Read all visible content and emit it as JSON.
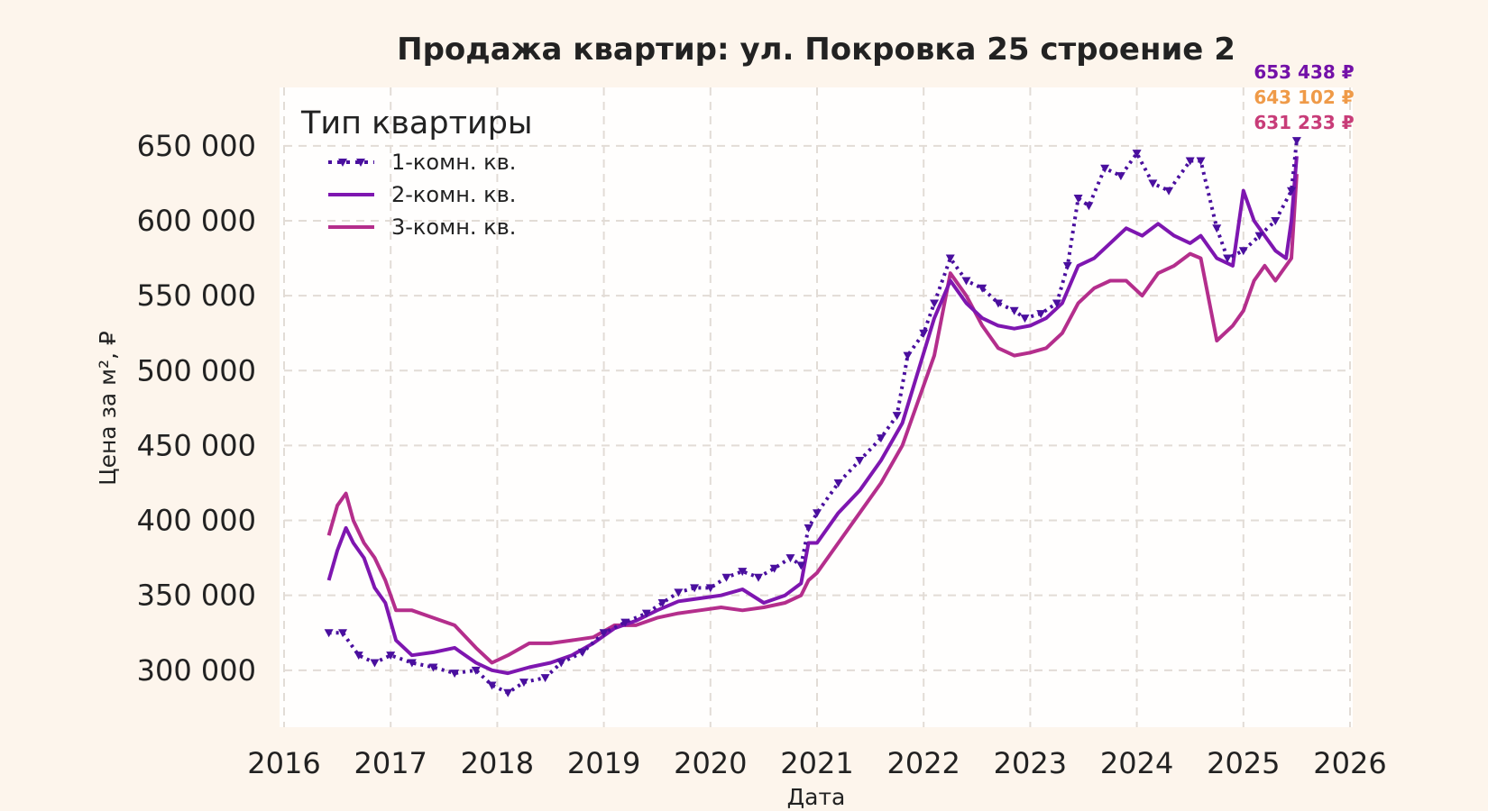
{
  "chart_data": {
    "type": "line",
    "title": "Продажа квартир: ул. Покровка 25 строение 2",
    "xlabel": "Дата",
    "ylabel": "Цена за м², ₽",
    "xlim": [
      2016.0,
      2026.0
    ],
    "ylim": [
      262000,
      689000
    ],
    "x_ticks": [
      "2016",
      "2017",
      "2018",
      "2019",
      "2020",
      "2021",
      "2022",
      "2023",
      "2024",
      "2025",
      "2026"
    ],
    "y_ticks": [
      "300 000",
      "350 000",
      "400 000",
      "450 000",
      "500 000",
      "550 000",
      "600 000",
      "650 000"
    ],
    "grid": true,
    "legend": {
      "title": "Тип квартиры",
      "placement": "top-left"
    },
    "series": [
      {
        "name": "1-комн. кв.",
        "color": "#4a0f9e",
        "style": "dotted-triangle",
        "end_label": "653 438 ₽",
        "x": [
          2016.42,
          2016.55,
          2016.7,
          2016.85,
          2017.0,
          2017.2,
          2017.4,
          2017.6,
          2017.8,
          2017.95,
          2018.1,
          2018.25,
          2018.45,
          2018.6,
          2018.8,
          2019.0,
          2019.2,
          2019.4,
          2019.55,
          2019.7,
          2019.85,
          2020.0,
          2020.15,
          2020.3,
          2020.45,
          2020.6,
          2020.75,
          2020.85,
          2020.92,
          2021.0,
          2021.2,
          2021.4,
          2021.6,
          2021.75,
          2021.85,
          2022.0,
          2022.1,
          2022.25,
          2022.4,
          2022.55,
          2022.7,
          2022.85,
          2022.95,
          2023.1,
          2023.25,
          2023.35,
          2023.45,
          2023.55,
          2023.7,
          2023.85,
          2024.0,
          2024.15,
          2024.3,
          2024.5,
          2024.6,
          2024.75,
          2024.85,
          2025.0,
          2025.15,
          2025.3,
          2025.45,
          2025.5
        ],
        "values": [
          325000,
          325000,
          310000,
          305000,
          310000,
          305000,
          302000,
          298000,
          300000,
          290000,
          285000,
          292000,
          295000,
          305000,
          312000,
          325000,
          332000,
          338000,
          345000,
          352000,
          355000,
          355000,
          362000,
          366000,
          362000,
          368000,
          375000,
          370000,
          395000,
          405000,
          425000,
          440000,
          455000,
          470000,
          510000,
          525000,
          545000,
          575000,
          560000,
          555000,
          545000,
          540000,
          535000,
          538000,
          545000,
          570000,
          615000,
          610000,
          635000,
          630000,
          645000,
          625000,
          620000,
          640000,
          640000,
          595000,
          575000,
          580000,
          590000,
          600000,
          620000,
          653438
        ]
      },
      {
        "name": "2-комн. кв.",
        "color": "#7e16b0",
        "style": "solid",
        "end_label": "643 102 ₽",
        "x": [
          2016.42,
          2016.5,
          2016.58,
          2016.65,
          2016.75,
          2016.85,
          2016.95,
          2017.05,
          2017.2,
          2017.4,
          2017.6,
          2017.8,
          2017.95,
          2018.1,
          2018.3,
          2018.5,
          2018.7,
          2018.9,
          2019.1,
          2019.3,
          2019.5,
          2019.7,
          2019.9,
          2020.1,
          2020.3,
          2020.5,
          2020.7,
          2020.85,
          2020.92,
          2021.0,
          2021.2,
          2021.4,
          2021.6,
          2021.8,
          2021.95,
          2022.1,
          2022.25,
          2022.4,
          2022.55,
          2022.7,
          2022.85,
          2023.0,
          2023.15,
          2023.3,
          2023.45,
          2023.6,
          2023.75,
          2023.9,
          2024.05,
          2024.2,
          2024.35,
          2024.5,
          2024.6,
          2024.75,
          2024.9,
          2025.0,
          2025.1,
          2025.2,
          2025.3,
          2025.4,
          2025.45,
          2025.5
        ],
        "values": [
          360000,
          380000,
          395000,
          385000,
          375000,
          355000,
          345000,
          320000,
          310000,
          312000,
          315000,
          305000,
          300000,
          298000,
          302000,
          305000,
          310000,
          318000,
          328000,
          333000,
          340000,
          346000,
          348000,
          350000,
          354000,
          345000,
          350000,
          358000,
          385000,
          385000,
          405000,
          420000,
          440000,
          465000,
          500000,
          535000,
          560000,
          545000,
          535000,
          530000,
          528000,
          530000,
          535000,
          545000,
          570000,
          575000,
          585000,
          595000,
          590000,
          598000,
          590000,
          585000,
          590000,
          575000,
          570000,
          620000,
          600000,
          590000,
          580000,
          575000,
          600000,
          643102
        ]
      },
      {
        "name": "3-комн. кв.",
        "color": "#b42e8c",
        "style": "solid",
        "end_label": "631 233 ₽",
        "x": [
          2016.42,
          2016.5,
          2016.58,
          2016.65,
          2016.75,
          2016.85,
          2016.95,
          2017.05,
          2017.2,
          2017.4,
          2017.6,
          2017.8,
          2017.95,
          2018.1,
          2018.3,
          2018.5,
          2018.7,
          2018.9,
          2019.1,
          2019.3,
          2019.5,
          2019.7,
          2019.9,
          2020.1,
          2020.3,
          2020.5,
          2020.7,
          2020.85,
          2020.92,
          2021.0,
          2021.2,
          2021.4,
          2021.6,
          2021.8,
          2021.95,
          2022.1,
          2022.25,
          2022.4,
          2022.55,
          2022.7,
          2022.85,
          2023.0,
          2023.15,
          2023.3,
          2023.45,
          2023.6,
          2023.75,
          2023.9,
          2024.05,
          2024.2,
          2024.35,
          2024.5,
          2024.6,
          2024.75,
          2024.9,
          2025.0,
          2025.1,
          2025.2,
          2025.3,
          2025.4,
          2025.45,
          2025.5
        ],
        "values": [
          390000,
          410000,
          418000,
          400000,
          385000,
          375000,
          360000,
          340000,
          340000,
          335000,
          330000,
          315000,
          305000,
          310000,
          318000,
          318000,
          320000,
          322000,
          330000,
          330000,
          335000,
          338000,
          340000,
          342000,
          340000,
          342000,
          345000,
          350000,
          360000,
          365000,
          385000,
          405000,
          425000,
          450000,
          480000,
          510000,
          565000,
          550000,
          530000,
          515000,
          510000,
          512000,
          515000,
          525000,
          545000,
          555000,
          560000,
          560000,
          550000,
          565000,
          570000,
          578000,
          575000,
          520000,
          530000,
          540000,
          560000,
          570000,
          560000,
          570000,
          575000,
          631233
        ]
      }
    ]
  }
}
